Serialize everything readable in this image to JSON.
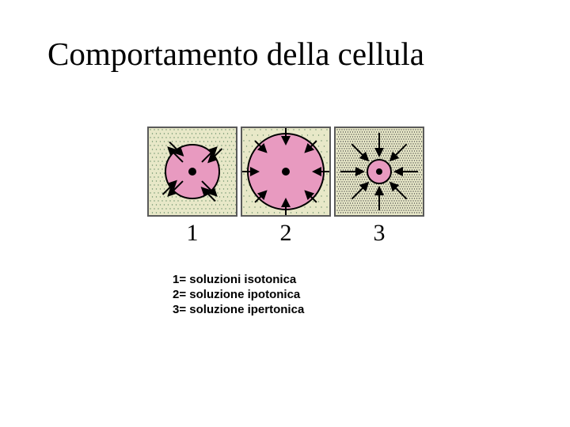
{
  "title": "Comportamento della cellula",
  "legend": {
    "line1": "1= soluzioni isotonica",
    "line2": "2= soluzione ipotonica",
    "line3": "3= soluzione ipertonica"
  },
  "figure": {
    "panel_size": 114,
    "panel_bg": "#e8e8c8",
    "panel_border": "#5a5a5a",
    "cell_fill": "#e89ac0",
    "cell_stroke": "#000000",
    "nucleus_fill": "#000000",
    "arrow_color": "#000000",
    "solution_dot_colors": [
      "#6b8f6b",
      "#6b8f6b",
      "#4a4a4a"
    ],
    "panels": [
      {
        "label": "1",
        "type": "isotonic",
        "cell_diameter": 70,
        "nucleus_diameter": 10,
        "solution_dot_spacing": 5,
        "arrows": "balanced"
      },
      {
        "label": "2",
        "type": "hypotonic",
        "cell_diameter": 98,
        "nucleus_diameter": 10,
        "solution_dot_spacing": 7,
        "arrows": "inward"
      },
      {
        "label": "3",
        "type": "hypertonic",
        "cell_diameter": 32,
        "nucleus_diameter": 8,
        "solution_dot_spacing": 3,
        "arrows": "inward_dense"
      }
    ]
  },
  "colors": {
    "background": "#ffffff",
    "text": "#000000"
  },
  "fonts": {
    "title": {
      "family": "Times New Roman",
      "size_pt": 32
    },
    "panel_label": {
      "family": "Times New Roman",
      "size_pt": 22
    },
    "legend": {
      "family": "Arial",
      "size_pt": 11,
      "weight": "bold"
    }
  }
}
